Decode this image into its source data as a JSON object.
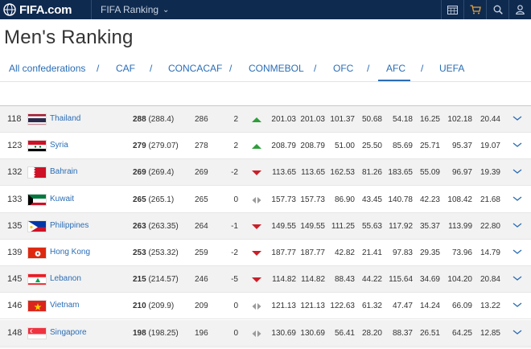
{
  "header": {
    "logo": "FIFA.com",
    "section": "FIFA Ranking",
    "icons": [
      "calendar-icon",
      "cart-icon",
      "search-icon",
      "user-icon"
    ]
  },
  "page_title": "Men's Ranking",
  "confederations": {
    "items": [
      "All confederations",
      "CAF",
      "CONCACAF",
      "CONMEBOL",
      "OFC",
      "AFC",
      "UEFA"
    ],
    "separator": "/",
    "active": "AFC"
  },
  "colors": {
    "topbar": "#0f2a4f",
    "link": "#2a6db5",
    "up": "#2e9e3a",
    "down": "#c9202a",
    "same": "#9a9a9a"
  },
  "rows": [
    {
      "rank": "118",
      "country": "Thailand",
      "pts": "288",
      "pts_exact": "(288.4)",
      "prev": "286",
      "delta": "2",
      "trend": "up",
      "c1": "201.03",
      "c2": "201.03",
      "c3": "101.37",
      "c4": "50.68",
      "c5": "54.18",
      "c6": "16.25",
      "c7": "102.18",
      "c8": "20.44"
    },
    {
      "rank": "123",
      "country": "Syria",
      "pts": "279",
      "pts_exact": "(279.07)",
      "prev": "278",
      "delta": "2",
      "trend": "up",
      "c1": "208.79",
      "c2": "208.79",
      "c3": "51.00",
      "c4": "25.50",
      "c5": "85.69",
      "c6": "25.71",
      "c7": "95.37",
      "c8": "19.07"
    },
    {
      "rank": "132",
      "country": "Bahrain",
      "pts": "269",
      "pts_exact": "(269.4)",
      "prev": "269",
      "delta": "-2",
      "trend": "down",
      "c1": "113.65",
      "c2": "113.65",
      "c3": "162.53",
      "c4": "81.26",
      "c5": "183.65",
      "c6": "55.09",
      "c7": "96.97",
      "c8": "19.39"
    },
    {
      "rank": "133",
      "country": "Kuwait",
      "pts": "265",
      "pts_exact": "(265.1)",
      "prev": "265",
      "delta": "0",
      "trend": "same",
      "c1": "157.73",
      "c2": "157.73",
      "c3": "86.90",
      "c4": "43.45",
      "c5": "140.78",
      "c6": "42.23",
      "c7": "108.42",
      "c8": "21.68"
    },
    {
      "rank": "135",
      "country": "Philippines",
      "pts": "263",
      "pts_exact": "(263.35)",
      "prev": "264",
      "delta": "-1",
      "trend": "down",
      "c1": "149.55",
      "c2": "149.55",
      "c3": "111.25",
      "c4": "55.63",
      "c5": "117.92",
      "c6": "35.37",
      "c7": "113.99",
      "c8": "22.80"
    },
    {
      "rank": "139",
      "country": "Hong Kong",
      "pts": "253",
      "pts_exact": "(253.32)",
      "prev": "259",
      "delta": "-2",
      "trend": "down",
      "c1": "187.77",
      "c2": "187.77",
      "c3": "42.82",
      "c4": "21.41",
      "c5": "97.83",
      "c6": "29.35",
      "c7": "73.96",
      "c8": "14.79"
    },
    {
      "rank": "145",
      "country": "Lebanon",
      "pts": "215",
      "pts_exact": "(214.57)",
      "prev": "246",
      "delta": "-5",
      "trend": "down",
      "c1": "114.82",
      "c2": "114.82",
      "c3": "88.43",
      "c4": "44.22",
      "c5": "115.64",
      "c6": "34.69",
      "c7": "104.20",
      "c8": "20.84"
    },
    {
      "rank": "146",
      "country": "Vietnam",
      "pts": "210",
      "pts_exact": "(209.9)",
      "prev": "209",
      "delta": "0",
      "trend": "same",
      "c1": "121.13",
      "c2": "121.13",
      "c3": "122.63",
      "c4": "61.32",
      "c5": "47.47",
      "c6": "14.24",
      "c7": "66.09",
      "c8": "13.22"
    },
    {
      "rank": "148",
      "country": "Singapore",
      "pts": "198",
      "pts_exact": "(198.25)",
      "prev": "196",
      "delta": "0",
      "trend": "same",
      "c1": "130.69",
      "c2": "130.69",
      "c3": "56.41",
      "c4": "28.20",
      "c5": "88.37",
      "c6": "26.51",
      "c7": "64.25",
      "c8": "12.85"
    }
  ]
}
